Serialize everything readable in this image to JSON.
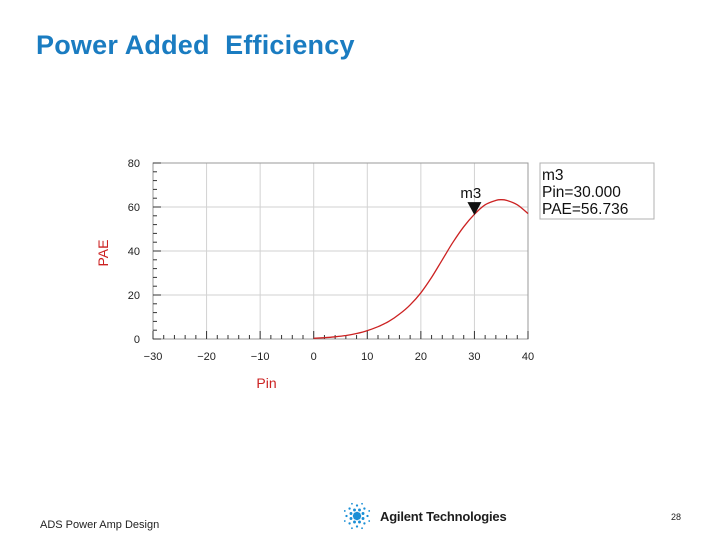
{
  "slide": {
    "title": "Power Added  Efficiency",
    "title_color": "#1a7cc1",
    "footer_left": "ADS Power Amp Design",
    "page_number": "28",
    "brand_name": "Agilent Technologies",
    "brand_icon": "spark-icon"
  },
  "chart_data": {
    "type": "line",
    "xlabel": "Pin",
    "ylabel": "PAE",
    "label_color": "#cc2222",
    "line_color": "#cc2222",
    "xlim": [
      -30,
      40
    ],
    "ylim": [
      0,
      80
    ],
    "xticks": [
      -30,
      -20,
      -10,
      0,
      10,
      20,
      30,
      40
    ],
    "xtick_labels": [
      "−30",
      "−20",
      "−10",
      "0",
      "10",
      "20",
      "30",
      "40"
    ],
    "yticks": [
      0,
      20,
      40,
      60,
      80
    ],
    "grid": true,
    "series": [
      {
        "x": [
          0,
          2,
          4,
          6,
          8,
          10,
          12,
          14,
          16,
          18,
          20,
          22,
          24,
          26,
          28,
          30,
          32,
          34,
          35,
          36,
          38,
          40
        ],
        "y": [
          0.3,
          0.6,
          1.0,
          1.6,
          2.5,
          3.8,
          5.6,
          8.0,
          11.3,
          15.5,
          21,
          28,
          36,
          44,
          51,
          56.7,
          61,
          63,
          63.3,
          63,
          61,
          57
        ]
      }
    ],
    "marker": {
      "name": "m3",
      "x": 30,
      "y": 56.736,
      "readout": [
        "m3",
        "Pin=30.000",
        "PAE=56.736"
      ]
    }
  }
}
